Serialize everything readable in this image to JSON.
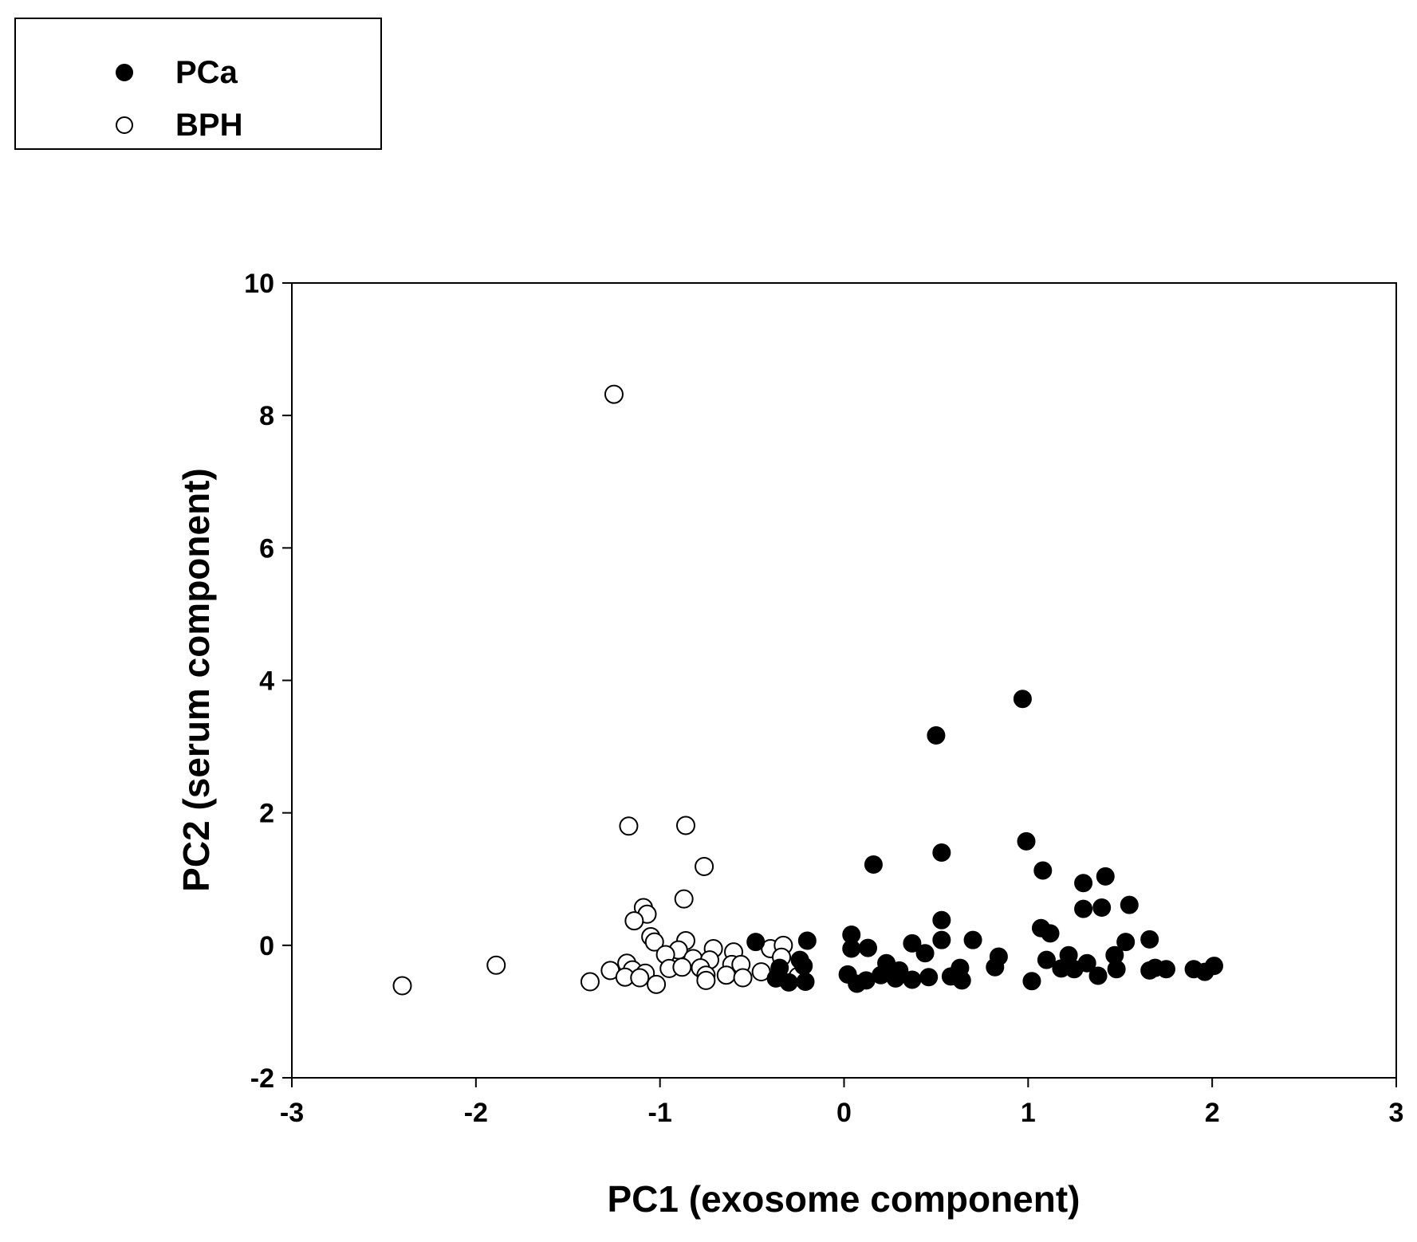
{
  "chart_data": {
    "type": "scatter",
    "title": "",
    "xlabel": "PC1 (exosome component)",
    "ylabel": "PC2 (serum component)",
    "xlim": [
      -3,
      3
    ],
    "ylim": [
      -2,
      10
    ],
    "x_ticks": [
      -3,
      -2,
      -1,
      0,
      1,
      2,
      3
    ],
    "y_ticks": [
      -2,
      0,
      2,
      4,
      6,
      8,
      10
    ],
    "x_tick_labels": [
      "-3",
      "-2",
      "-1",
      "0",
      "1",
      "2",
      "3"
    ],
    "y_tick_labels": [
      "-2",
      "0",
      "2",
      "4",
      "6",
      "8",
      "10"
    ],
    "grid": false,
    "legend_position": "top-left outside",
    "series": [
      {
        "name": "PCa",
        "marker": "filled-circle",
        "color": "#000000",
        "points": [
          [
            0.97,
            3.72
          ],
          [
            0.5,
            3.17
          ],
          [
            0.99,
            1.57
          ],
          [
            0.53,
            1.4
          ],
          [
            0.16,
            1.22
          ],
          [
            1.08,
            1.13
          ],
          [
            1.42,
            1.04
          ],
          [
            1.3,
            0.94
          ],
          [
            1.55,
            0.61
          ],
          [
            1.3,
            0.55
          ],
          [
            1.4,
            0.57
          ],
          [
            0.53,
            0.38
          ],
          [
            1.07,
            0.26
          ],
          [
            1.12,
            0.18
          ],
          [
            -0.48,
            0.05
          ],
          [
            -0.2,
            0.07
          ],
          [
            0.04,
            0.16
          ],
          [
            0.7,
            0.08
          ],
          [
            0.53,
            0.08
          ],
          [
            0.37,
            0.03
          ],
          [
            1.53,
            0.05
          ],
          [
            1.66,
            0.09
          ],
          [
            0.13,
            -0.04
          ],
          [
            0.04,
            -0.05
          ],
          [
            0.44,
            -0.12
          ],
          [
            0.84,
            -0.17
          ],
          [
            1.22,
            -0.15
          ],
          [
            1.47,
            -0.15
          ],
          [
            -0.24,
            -0.22
          ],
          [
            1.1,
            -0.22
          ],
          [
            0.23,
            -0.27
          ],
          [
            0.63,
            -0.34
          ],
          [
            1.32,
            -0.27
          ],
          [
            0.82,
            -0.33
          ],
          [
            -0.35,
            -0.34
          ],
          [
            -0.22,
            -0.31
          ],
          [
            0.3,
            -0.38
          ],
          [
            1.18,
            -0.35
          ],
          [
            1.25,
            -0.36
          ],
          [
            1.48,
            -0.36
          ],
          [
            1.69,
            -0.34
          ],
          [
            2.01,
            -0.31
          ],
          [
            0.02,
            -0.44
          ],
          [
            0.2,
            -0.45
          ],
          [
            0.37,
            -0.52
          ],
          [
            0.46,
            -0.48
          ],
          [
            0.58,
            -0.47
          ],
          [
            0.64,
            -0.53
          ],
          [
            1.38,
            -0.46
          ],
          [
            1.66,
            -0.38
          ],
          [
            1.75,
            -0.36
          ],
          [
            1.9,
            -0.36
          ],
          [
            1.96,
            -0.4
          ],
          [
            -0.37,
            -0.5
          ],
          [
            -0.21,
            -0.55
          ],
          [
            0.07,
            -0.58
          ],
          [
            0.12,
            -0.53
          ],
          [
            0.28,
            -0.5
          ],
          [
            1.02,
            -0.54
          ],
          [
            -0.3,
            -0.56
          ]
        ]
      },
      {
        "name": "BPH",
        "marker": "open-circle",
        "color": "#000000",
        "points": [
          [
            -1.25,
            8.32
          ],
          [
            -1.17,
            1.8
          ],
          [
            -0.86,
            1.81
          ],
          [
            -0.76,
            1.19
          ],
          [
            -0.87,
            0.7
          ],
          [
            -1.09,
            0.57
          ],
          [
            -1.07,
            0.47
          ],
          [
            -1.14,
            0.37
          ],
          [
            -1.05,
            0.13
          ],
          [
            -1.03,
            0.05
          ],
          [
            -0.86,
            0.07
          ],
          [
            -0.71,
            -0.05
          ],
          [
            -0.6,
            -0.1
          ],
          [
            -0.4,
            -0.05
          ],
          [
            -0.33,
            0.0
          ],
          [
            -0.9,
            -0.07
          ],
          [
            -0.97,
            -0.14
          ],
          [
            -0.82,
            -0.2
          ],
          [
            -0.73,
            -0.22
          ],
          [
            -0.34,
            -0.18
          ],
          [
            -1.18,
            -0.27
          ],
          [
            -1.27,
            -0.38
          ],
          [
            -1.15,
            -0.37
          ],
          [
            -1.08,
            -0.42
          ],
          [
            -0.95,
            -0.35
          ],
          [
            -0.88,
            -0.33
          ],
          [
            -0.78,
            -0.34
          ],
          [
            -0.61,
            -0.29
          ],
          [
            -0.56,
            -0.29
          ],
          [
            -0.45,
            -0.4
          ],
          [
            -1.19,
            -0.48
          ],
          [
            -1.11,
            -0.49
          ],
          [
            -1.02,
            -0.59
          ],
          [
            -0.75,
            -0.45
          ],
          [
            -0.75,
            -0.53
          ],
          [
            -0.64,
            -0.45
          ],
          [
            -0.55,
            -0.49
          ],
          [
            -0.25,
            -0.47
          ],
          [
            -1.38,
            -0.55
          ],
          [
            -1.89,
            -0.3
          ],
          [
            -2.4,
            -0.61
          ]
        ]
      }
    ]
  }
}
